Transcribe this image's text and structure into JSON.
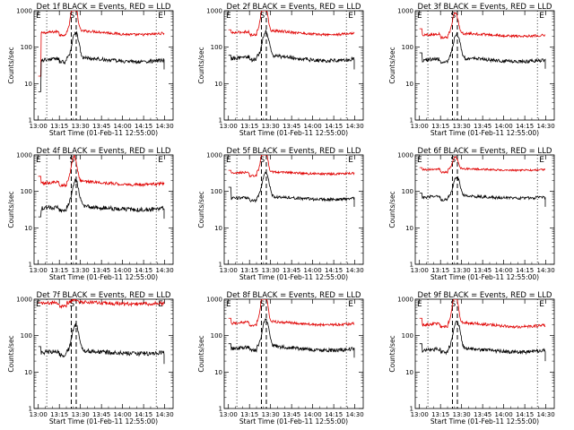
{
  "chart_data": {
    "type": "line",
    "layout": "3x3 grid of panels",
    "x_tick_labels": [
      "13:00",
      "13:15",
      "13:30",
      "13:45",
      "14:00",
      "14:15",
      "14:30"
    ],
    "x_tick_minutes_after_1300": [
      0,
      15,
      30,
      45,
      60,
      75,
      90
    ],
    "x_range_minutes_after_1300": [
      -3,
      96
    ],
    "xlabel": "Start Time (01-Feb-11 12:55:00)",
    "ylabel": "Counts/sec",
    "y_scale": "log",
    "ylim": [
      1,
      1000
    ],
    "y_tick_labels": [
      "1",
      "10",
      "100",
      "1000"
    ],
    "y_tick_values": [
      1,
      10,
      100,
      1000
    ],
    "series_colors": {
      "events": "#000000",
      "lld": "#e00000"
    },
    "marker_minutes": {
      "dotted_left": 6,
      "dotted_right": 84,
      "dashed": [
        23.5,
        27
      ]
    },
    "marker_labels": {
      "start_left": "E",
      "start_mid": "S",
      "end_right": "E"
    },
    "panels": [
      {
        "title": "Det 1f BLACK = Events, RED = LLD",
        "lld": {
          "start": 16,
          "level": 250,
          "wave": 0.12,
          "peak": 2000,
          "noise": 0.035
        },
        "events": {
          "start": 6,
          "level": 45,
          "wave": 0.12,
          "peak": 250,
          "noise": 0.05
        }
      },
      {
        "title": "Det 2f BLACK = Events, RED = LLD",
        "lld": {
          "start": 300,
          "level": 250,
          "wave": 0.12,
          "peak": 2000,
          "noise": 0.035
        },
        "events": {
          "start": 60,
          "level": 50,
          "wave": 0.15,
          "peak": 260,
          "noise": 0.05
        }
      },
      {
        "title": "Det 3f BLACK = Events, RED = LLD",
        "lld": {
          "start": 320,
          "level": 220,
          "wave": 0.08,
          "peak": 900,
          "noise": 0.035
        },
        "events": {
          "start": 70,
          "level": 45,
          "wave": 0.1,
          "peak": 230,
          "noise": 0.05
        }
      },
      {
        "title": "Det 4f BLACK = Events, RED = LLD",
        "lld": {
          "start": 260,
          "level": 170,
          "wave": 0.1,
          "peak": 900,
          "noise": 0.04
        },
        "events": {
          "start": 20,
          "level": 35,
          "wave": 0.1,
          "peak": 200,
          "noise": 0.06
        }
      },
      {
        "title": "Det 5f BLACK = Events, RED = LLD",
        "lld": {
          "start": 380,
          "level": 320,
          "wave": 0.06,
          "peak": 2000,
          "noise": 0.03
        },
        "events": {
          "start": 130,
          "level": 65,
          "wave": 0.08,
          "peak": 330,
          "noise": 0.04
        }
      },
      {
        "title": "Det 6f BLACK = Events, RED = LLD",
        "lld": {
          "start": 450,
          "level": 400,
          "wave": 0.05,
          "peak": 900,
          "noise": 0.025
        },
        "events": {
          "start": 90,
          "level": 70,
          "wave": 0.07,
          "peak": 250,
          "noise": 0.04
        }
      },
      {
        "title": "Det 7f BLACK = Events, RED = LLD",
        "lld": {
          "start": 800,
          "level": 780,
          "wave": 0.05,
          "peak": 1000,
          "noise": 0.05
        },
        "events": {
          "start": 50,
          "level": 35,
          "wave": 0.08,
          "peak": 200,
          "noise": 0.06
        }
      },
      {
        "title": "Det 8f BLACK = Events, RED = LLD",
        "lld": {
          "start": 300,
          "level": 220,
          "wave": 0.1,
          "peak": 2000,
          "noise": 0.035
        },
        "events": {
          "start": 60,
          "level": 45,
          "wave": 0.12,
          "peak": 270,
          "noise": 0.05
        }
      },
      {
        "title": "Det 9f BLACK = Events, RED = LLD",
        "lld": {
          "start": 300,
          "level": 200,
          "wave": 0.12,
          "peak": 1300,
          "noise": 0.04
        },
        "events": {
          "start": 60,
          "level": 40,
          "wave": 0.12,
          "peak": 250,
          "noise": 0.05
        }
      }
    ]
  }
}
